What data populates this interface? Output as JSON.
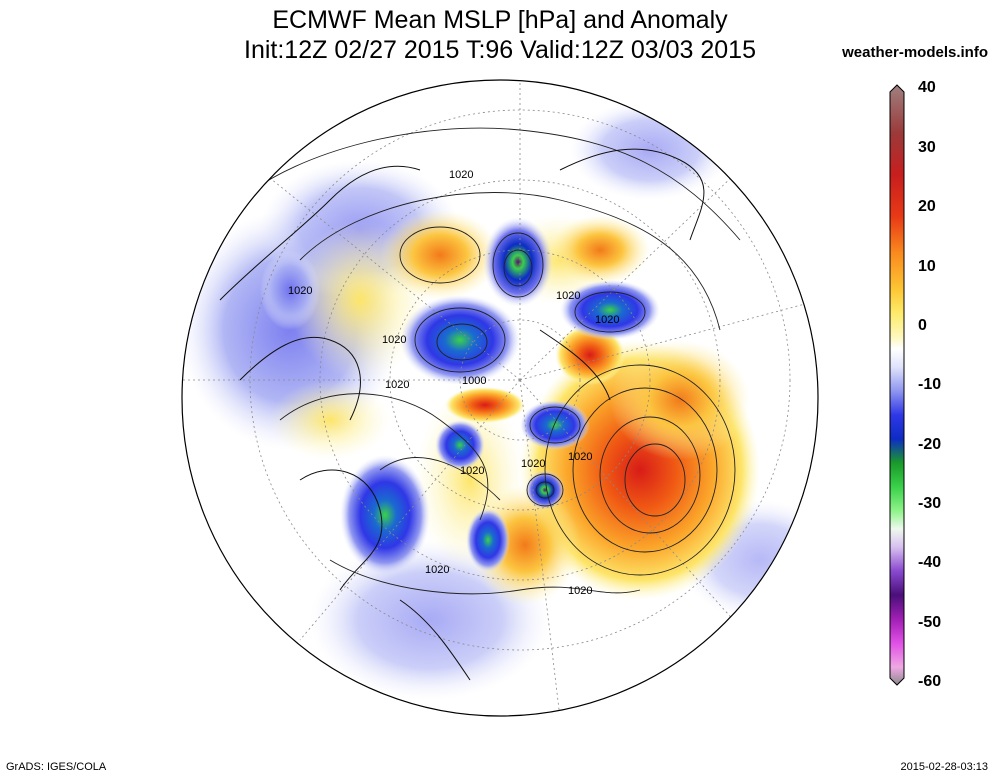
{
  "header": {
    "title_line1": "ECMWF Mean MSLP [hPa] and Anomaly",
    "title_line2": "Init:12Z 02/27 2015 T:96 Valid:12Z 03/03 2015",
    "site": "weather-models.info"
  },
  "footer": {
    "left": "GrADS: IGES/COLA",
    "right": "2015-02-28-03:13"
  },
  "colorbar": {
    "labels": [
      "40",
      "30",
      "20",
      "10",
      "0",
      "-10",
      "-20",
      "-30",
      "-40",
      "-50",
      "-60"
    ],
    "colors": [
      "#7a5a5a",
      "#9b3a3a",
      "#c81e1e",
      "#e83a16",
      "#f26a14",
      "#fa9a1e",
      "#fdc534",
      "#fdeb6a",
      "#fdf7bd",
      "#ffffff",
      "#dfe3fb",
      "#a8aef3",
      "#6f72ee",
      "#2f37e6",
      "#0d2cc4",
      "#1a9a2a",
      "#3ad14a",
      "#8ff48a",
      "#dff6df",
      "#e9d2f4",
      "#a86ce0",
      "#6a1fb7",
      "#5a106e",
      "#b21fc4",
      "#e050e6",
      "#f09ae0",
      "#8b8b8b"
    ]
  },
  "isobar_labels": [
    "1020",
    "1020",
    "1020",
    "1020",
    "1020",
    "1000",
    "1020",
    "1020",
    "1020",
    "1020",
    "1020",
    "1020"
  ]
}
